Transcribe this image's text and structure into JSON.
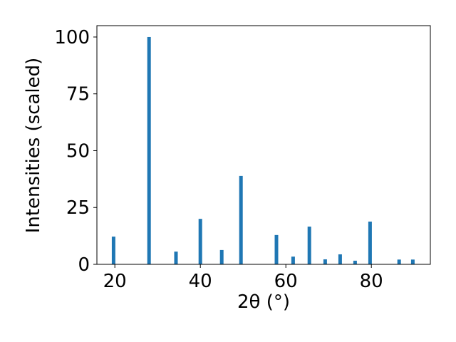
{
  "chart_data": {
    "type": "bar",
    "x": [
      19.7,
      28.0,
      34.3,
      40.0,
      45.0,
      49.5,
      57.8,
      61.7,
      65.5,
      69.2,
      72.7,
      76.2,
      79.7,
      86.5,
      89.7
    ],
    "values": [
      12.2,
      100,
      5.6,
      20,
      6.3,
      38.9,
      12.9,
      3.4,
      16.6,
      2.2,
      4.4,
      1.6,
      18.8,
      2.1,
      2.1
    ],
    "color": "#1f77b4",
    "xlabel": "2θ (°)",
    "ylabel": "Intensities (scaled)",
    "xlim": [
      15.8,
      93.8
    ],
    "ylim": [
      0,
      105
    ],
    "xticks": [
      20,
      40,
      60,
      80
    ],
    "yticks": [
      0,
      25,
      50,
      75,
      100
    ]
  }
}
